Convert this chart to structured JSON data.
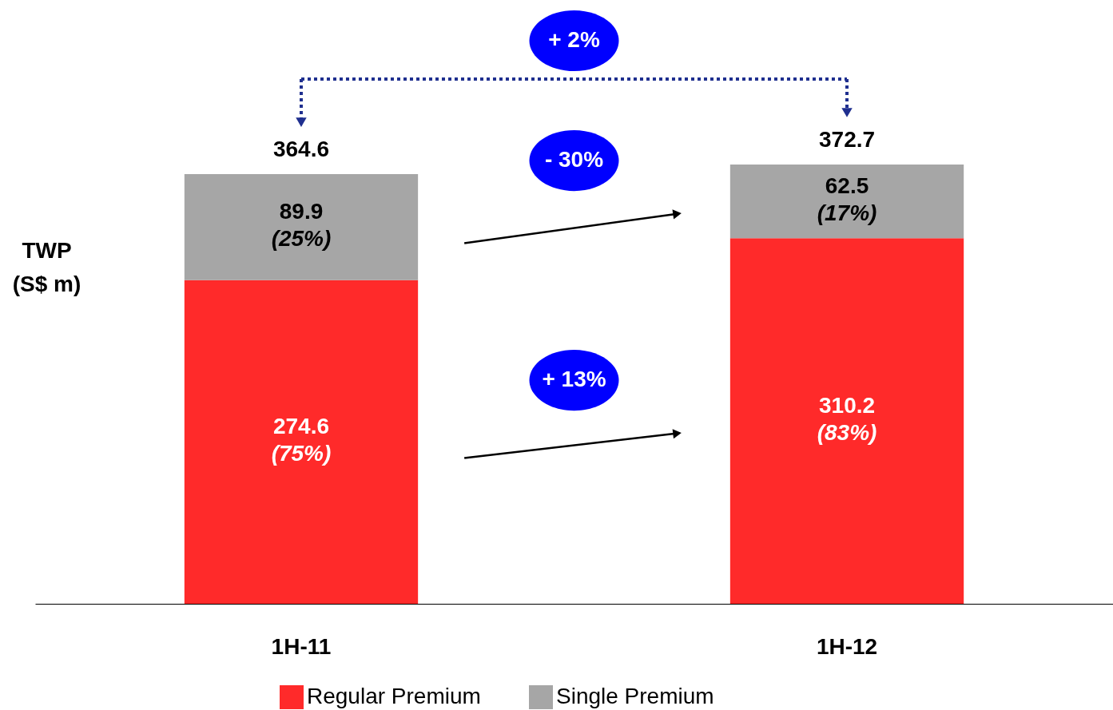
{
  "chart_data": {
    "type": "bar",
    "stacked": true,
    "ylabel": "TWP\n(S$ m)",
    "categories": [
      "1H-11",
      "1H-12"
    ],
    "series": [
      {
        "name": "Regular Premium",
        "color": "#ff2a2a",
        "values": [
          274.6,
          310.2
        ]
      },
      {
        "name": "Single Premium",
        "color": "#a6a6a6",
        "values": [
          89.9,
          62.5
        ]
      }
    ],
    "data_labels": true,
    "totals": [
      "364.6",
      "372.7"
    ],
    "annotations": [
      "+ 2%",
      "- 30%",
      "+ 13%",
      "(75%)",
      "(83%)",
      "(25%)",
      "(17%)"
    ],
    "legend": "bottom"
  }
}
